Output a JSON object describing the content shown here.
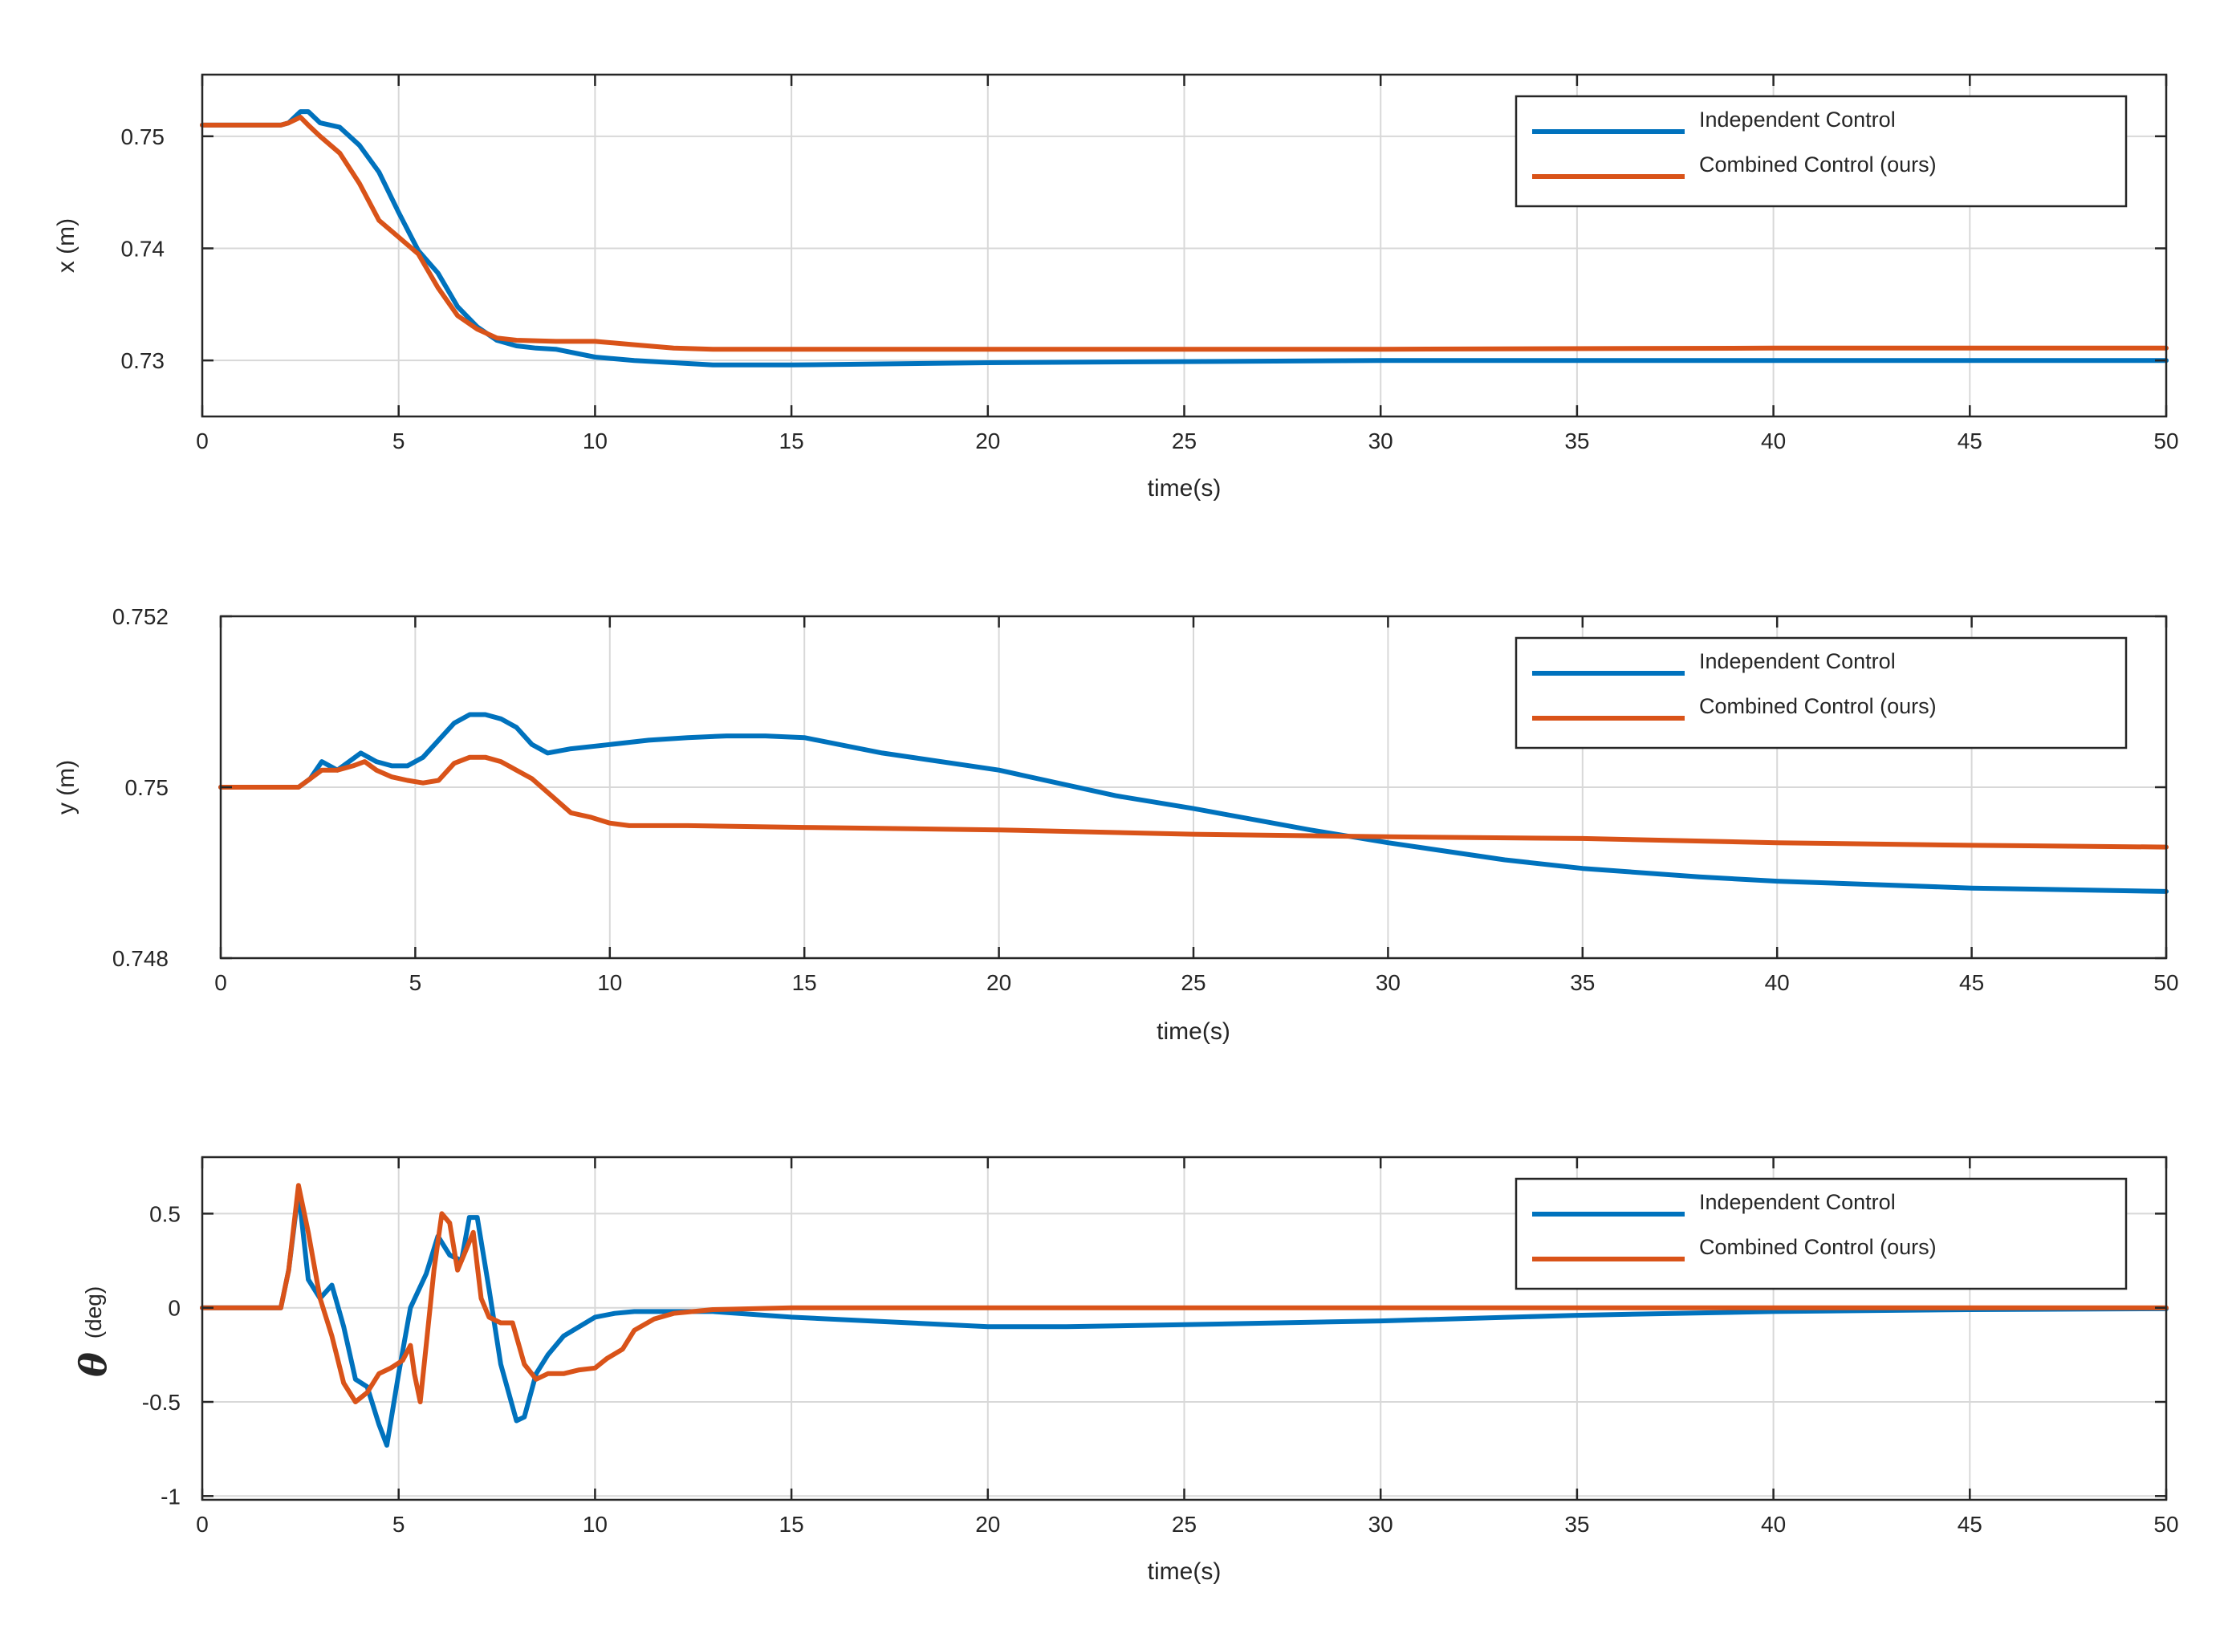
{
  "colors": {
    "independent": "#0072BD",
    "combined": "#D95319",
    "grid": "#d8d8d8",
    "axis": "#262626"
  },
  "chart_data": [
    {
      "type": "line",
      "id": "x",
      "title": "",
      "xlabel": "time(s)",
      "ylabel": "x (m)",
      "xlim": [
        0,
        50
      ],
      "ylim": [
        0.725,
        0.7555
      ],
      "xticks": [
        0,
        5,
        10,
        15,
        20,
        25,
        30,
        35,
        40,
        45,
        50
      ],
      "yticks": [
        0.73,
        0.74,
        0.75
      ],
      "ytick_labels": [
        "0.73",
        "0.74",
        "0.75"
      ],
      "grid": true,
      "legend": "top-right",
      "series": [
        {
          "name": "Independent Control",
          "color_key": "independent",
          "x": [
            0,
            2,
            2.2,
            2.5,
            2.7,
            3.0,
            3.5,
            4.0,
            4.5,
            5.0,
            5.5,
            6.0,
            6.5,
            7.0,
            7.5,
            8.0,
            8.5,
            9.0,
            10,
            11,
            12,
            13,
            15,
            20,
            25,
            30,
            35,
            40,
            45,
            50
          ],
          "y": [
            0.751,
            0.751,
            0.7512,
            0.7522,
            0.7522,
            0.7512,
            0.7508,
            0.7492,
            0.7468,
            0.7432,
            0.7398,
            0.7378,
            0.7348,
            0.733,
            0.7318,
            0.7313,
            0.7311,
            0.731,
            0.7303,
            0.73,
            0.7298,
            0.7296,
            0.7296,
            0.7298,
            0.7299,
            0.73,
            0.73,
            0.73,
            0.73,
            0.73
          ]
        },
        {
          "name": "Combined Control (ours)",
          "color_key": "combined",
          "x": [
            0,
            2,
            2.2,
            2.5,
            2.7,
            3.0,
            3.5,
            4.0,
            4.5,
            5.0,
            5.5,
            6.0,
            6.5,
            7.0,
            7.5,
            8.0,
            9,
            10,
            11,
            12,
            13,
            15,
            20,
            30,
            40,
            50
          ],
          "y": [
            0.751,
            0.751,
            0.7512,
            0.7517,
            0.751,
            0.75,
            0.7485,
            0.7458,
            0.7425,
            0.741,
            0.7395,
            0.7365,
            0.734,
            0.7328,
            0.732,
            0.7318,
            0.7317,
            0.7317,
            0.7314,
            0.7311,
            0.731,
            0.731,
            0.731,
            0.731,
            0.7311,
            0.7311
          ]
        }
      ]
    },
    {
      "type": "line",
      "id": "y",
      "title": "",
      "xlabel": "time(s)",
      "ylabel": "y (m)",
      "xlim": [
        0,
        50
      ],
      "ylim": [
        0.748,
        0.752
      ],
      "xticks": [
        0,
        5,
        10,
        15,
        20,
        25,
        30,
        35,
        40,
        45,
        50
      ],
      "yticks": [
        0.748,
        0.75,
        0.752
      ],
      "ytick_labels": [
        "0.748",
        "0.75",
        "0.752"
      ],
      "grid": true,
      "legend": "top-right",
      "series": [
        {
          "name": "Independent Control",
          "color_key": "independent",
          "x": [
            0,
            2,
            2.3,
            2.6,
            3.0,
            3.3,
            3.6,
            4.0,
            4.4,
            4.8,
            5.2,
            5.6,
            6.0,
            6.4,
            6.8,
            7.2,
            7.6,
            8.0,
            8.4,
            9,
            10,
            11,
            12,
            13,
            14,
            15,
            17,
            20,
            23,
            25,
            28,
            30,
            33,
            35,
            38,
            40,
            45,
            50
          ],
          "y": [
            0.75,
            0.75,
            0.7501,
            0.7503,
            0.7502,
            0.7503,
            0.7504,
            0.7503,
            0.75025,
            0.75025,
            0.75035,
            0.75055,
            0.75075,
            0.75085,
            0.75085,
            0.7508,
            0.7507,
            0.7505,
            0.7504,
            0.75045,
            0.7505,
            0.75055,
            0.75058,
            0.7506,
            0.7506,
            0.75058,
            0.7504,
            0.7502,
            0.7499,
            0.74975,
            0.7495,
            0.74935,
            0.74915,
            0.74905,
            0.74895,
            0.7489,
            0.74882,
            0.74878
          ]
        },
        {
          "name": "Combined Control (ours)",
          "color_key": "combined",
          "x": [
            0,
            2,
            2.3,
            2.6,
            3.0,
            3.4,
            3.7,
            4.0,
            4.4,
            4.8,
            5.2,
            5.6,
            6.0,
            6.4,
            6.8,
            7.2,
            7.6,
            8.0,
            8.5,
            9,
            9.5,
            10,
            10.5,
            11,
            12,
            15,
            20,
            25,
            30,
            35,
            40,
            45,
            50
          ],
          "y": [
            0.75,
            0.75,
            0.7501,
            0.7502,
            0.7502,
            0.75025,
            0.7503,
            0.7502,
            0.75012,
            0.75008,
            0.75005,
            0.75008,
            0.75028,
            0.75035,
            0.75035,
            0.7503,
            0.7502,
            0.7501,
            0.7499,
            0.7497,
            0.74965,
            0.74958,
            0.74955,
            0.74955,
            0.74955,
            0.74953,
            0.7495,
            0.74945,
            0.74942,
            0.7494,
            0.74935,
            0.74932,
            0.7493
          ]
        }
      ]
    },
    {
      "type": "line",
      "id": "theta",
      "title": "",
      "xlabel": "time(s)",
      "ylabel": "θ (deg)",
      "ylabel_symbol": "θ",
      "ylabel_unit": "(deg)",
      "xlim": [
        0,
        50
      ],
      "ylim": [
        -1.02,
        0.8
      ],
      "xticks": [
        0,
        5,
        10,
        15,
        20,
        25,
        30,
        35,
        40,
        45,
        50
      ],
      "yticks": [
        -1,
        -0.5,
        0,
        0.5
      ],
      "ytick_labels": [
        "-1",
        "-0.5",
        "0",
        "0.5"
      ],
      "grid": true,
      "legend": "top-right",
      "series": [
        {
          "name": "Independent Control",
          "color_key": "independent",
          "x": [
            0,
            2,
            2.2,
            2.45,
            2.7,
            3.0,
            3.3,
            3.6,
            3.9,
            4.2,
            4.5,
            4.7,
            5.0,
            5.3,
            5.7,
            6.0,
            6.3,
            6.6,
            6.8,
            7.0,
            7.3,
            7.6,
            8.0,
            8.2,
            8.5,
            8.8,
            9.2,
            9.6,
            10,
            10.5,
            11,
            12,
            13,
            15,
            20,
            22,
            25,
            30,
            35,
            40,
            45,
            50
          ],
          "y": [
            0,
            0,
            0.2,
            0.62,
            0.15,
            0.05,
            0.12,
            -0.1,
            -0.38,
            -0.42,
            -0.62,
            -0.73,
            -0.35,
            0.0,
            0.18,
            0.38,
            0.28,
            0.25,
            0.48,
            0.48,
            0.1,
            -0.3,
            -0.6,
            -0.58,
            -0.35,
            -0.25,
            -0.15,
            -0.1,
            -0.05,
            -0.03,
            -0.02,
            -0.02,
            -0.02,
            -0.05,
            -0.1,
            -0.1,
            -0.09,
            -0.07,
            -0.04,
            -0.02,
            -0.01,
            -0.005
          ]
        },
        {
          "name": "Combined Control (ours)",
          "color_key": "combined",
          "x": [
            0,
            2,
            2.2,
            2.45,
            2.7,
            3.0,
            3.3,
            3.6,
            3.9,
            4.2,
            4.5,
            4.8,
            5.1,
            5.3,
            5.4,
            5.55,
            5.7,
            5.9,
            6.1,
            6.3,
            6.5,
            6.7,
            6.9,
            7.1,
            7.3,
            7.6,
            7.9,
            8.2,
            8.5,
            8.8,
            9.2,
            9.6,
            10,
            10.3,
            10.7,
            11,
            11.5,
            12,
            13,
            15,
            20,
            30,
            40,
            45,
            50
          ],
          "y": [
            0,
            0,
            0.2,
            0.65,
            0.4,
            0.05,
            -0.15,
            -0.4,
            -0.5,
            -0.45,
            -0.35,
            -0.32,
            -0.28,
            -0.2,
            -0.35,
            -0.5,
            -0.2,
            0.2,
            0.5,
            0.45,
            0.2,
            0.3,
            0.4,
            0.05,
            -0.05,
            -0.08,
            -0.08,
            -0.3,
            -0.38,
            -0.35,
            -0.35,
            -0.33,
            -0.32,
            -0.27,
            -0.22,
            -0.12,
            -0.06,
            -0.03,
            -0.01,
            0,
            0,
            0,
            0,
            0,
            0
          ]
        }
      ]
    }
  ]
}
